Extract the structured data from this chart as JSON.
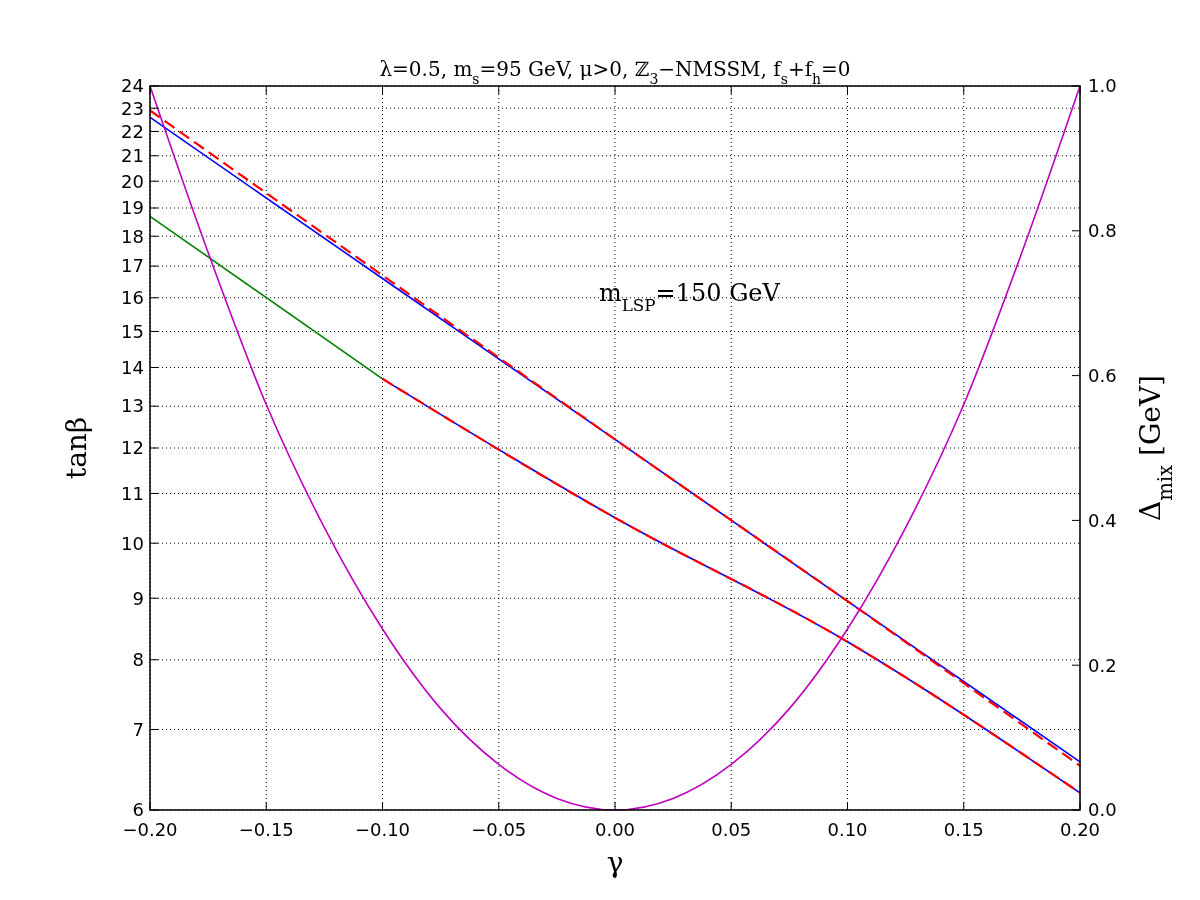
{
  "chart_data": {
    "type": "line",
    "title": "λ=0.5, m$_{s}$=95 GeV, μ>0, ℤ$_{3}$−NMSSM, f$_{s}$+f$_{h}$=0",
    "xlabel": "γ",
    "ylabel": "tanβ",
    "y2label": "Δ$_{mix}$ [GeV]",
    "annotations": [
      "m$_{LSP}$=150 GeV"
    ],
    "log": "y",
    "grid": true,
    "xlim": [
      -0.2,
      0.2
    ],
    "xticks": [
      {
        "value": -0.2,
        "label": "−0.20"
      },
      {
        "value": -0.15,
        "label": "−0.15"
      },
      {
        "value": -0.1,
        "label": "−0.10"
      },
      {
        "value": -0.05,
        "label": "−0.05"
      },
      {
        "value": 0,
        "label": "0.00"
      },
      {
        "value": 0.05,
        "label": "0.05"
      },
      {
        "value": 0.1,
        "label": "0.10"
      },
      {
        "value": 0.15,
        "label": "0.15"
      },
      {
        "value": 0.2,
        "label": "0.20"
      }
    ],
    "ylim": [
      6,
      24
    ],
    "yticks": [
      6,
      7,
      8,
      9,
      10,
      11,
      12,
      13,
      14,
      15,
      16,
      17,
      18,
      19,
      20,
      21,
      22,
      23,
      24
    ],
    "y2lim": [
      0,
      1
    ],
    "y2ticks": [
      {
        "value": 0,
        "label": "0.0"
      },
      {
        "value": 0.2,
        "label": "0.2"
      },
      {
        "value": 0.4,
        "label": "0.4"
      },
      {
        "value": 0.6,
        "label": "0.6"
      },
      {
        "value": 0.8,
        "label": "0.8"
      },
      {
        "value": 1,
        "label": "1.0"
      }
    ],
    "series": [
      {
        "color": "#008000",
        "line_style": "solid",
        "x": [
          -0.2,
          -0.1
        ],
        "values": [
          18.7,
          13.7
        ]
      },
      {
        "color": "#0000ff",
        "line_style": "solid",
        "x": [
          -0.2,
          -0.1,
          0,
          0.1,
          0.2
        ],
        "values": [
          22.6,
          16.6,
          12.2,
          8.95,
          6.58
        ]
      },
      {
        "color": "#ff0000",
        "line_style": "dashed",
        "x": [
          -0.2,
          -0.1,
          0,
          0.1,
          0.2
        ],
        "values": [
          22.9,
          16.7,
          12.2,
          8.95,
          6.53
        ]
      },
      {
        "color": "#0000ff",
        "line_style": "solid",
        "x": [
          -0.1,
          0,
          0.1,
          0.2
        ],
        "values": [
          13.7,
          10.5,
          8.28,
          6.2
        ]
      },
      {
        "color": "#ff0000",
        "line_style": "dashed",
        "x": [
          -0.1,
          0,
          0.1,
          0.2
        ],
        "values": [
          13.7,
          10.5,
          8.28,
          6.2
        ]
      },
      {
        "color": "#bf00bf",
        "line_style": "solid",
        "axis": "y2",
        "x": [
          -0.2,
          -0.175,
          -0.15,
          -0.125,
          -0.1,
          -0.075,
          -0.05,
          -0.025,
          0,
          0.025,
          0.05,
          0.075,
          0.1,
          0.125,
          0.15,
          0.175,
          0.2
        ],
        "values": [
          1,
          0.77,
          0.56,
          0.39,
          0.25,
          0.14,
          0.063,
          0.016,
          0,
          0.016,
          0.063,
          0.14,
          0.25,
          0.39,
          0.56,
          0.77,
          1
        ]
      }
    ]
  }
}
